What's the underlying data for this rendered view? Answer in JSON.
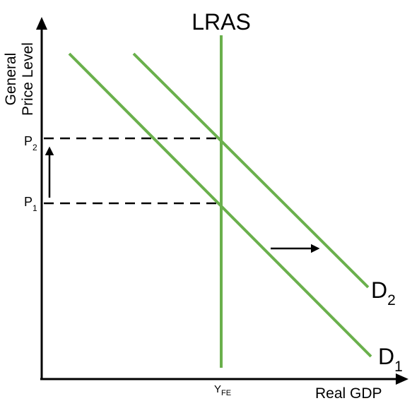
{
  "diagram": {
    "y_axis_label_line1": "General",
    "y_axis_label_line2": "Price Level",
    "x_axis_label": "Real GDP",
    "supply_curve": {
      "label": "LRAS",
      "color": "#6ab04c"
    },
    "demand_curves": [
      {
        "label_main": "D",
        "label_sub": "1",
        "color": "#6ab04c"
      },
      {
        "label_main": "D",
        "label_sub": "2",
        "color": "#6ab04c"
      }
    ],
    "price_levels": [
      {
        "main": "P",
        "sub": "1"
      },
      {
        "main": "P",
        "sub": "2"
      }
    ],
    "output_label": {
      "main": "Y",
      "sub": "FE"
    },
    "axis_color": "#000000",
    "guide_line_style": "dashed",
    "arrows": [
      "price-increase-arrow",
      "demand-shift-arrow"
    ]
  }
}
